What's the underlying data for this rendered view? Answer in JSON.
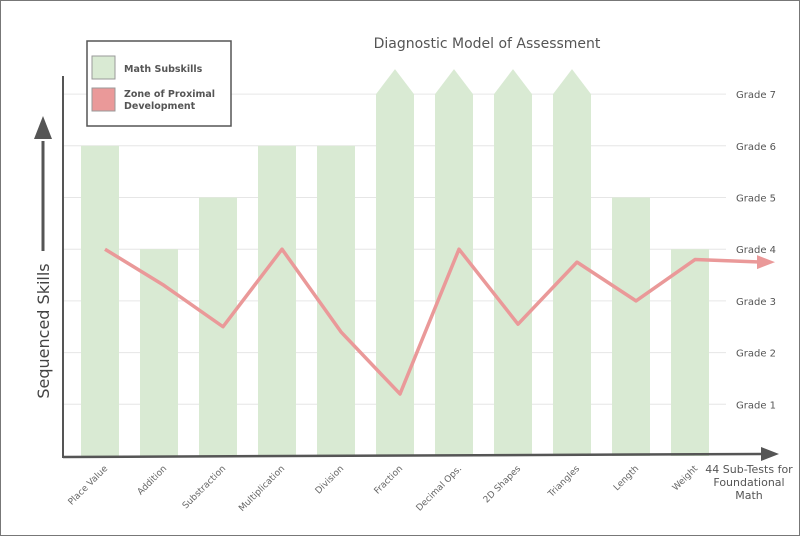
{
  "chart_data": {
    "type": "bar",
    "title": "Diagnostic Model of Assessment",
    "ylabel": "Sequenced Skills",
    "xlabel": "44 Sub-Tests for Foundational Math",
    "xlabel_lines": [
      "44 Sub-Tests for",
      "Foundational",
      "Math"
    ],
    "categories": [
      "Place Value",
      "Addition",
      "Substraction",
      "Multiplication",
      "Division",
      "Fraction",
      "Decimal Ops.",
      "2D Shapes",
      "Triangles",
      "Length",
      "Weight"
    ],
    "y_tick_labels": [
      "Grade 1",
      "Grade 2",
      "Grade 3",
      "Grade 4",
      "Grade 5",
      "Grade 6",
      "Grade 7"
    ],
    "ylim": [
      0,
      7.5
    ],
    "grid": true,
    "legend_placement": "top-left",
    "series": [
      {
        "name": "Math Subskills",
        "kind": "bar",
        "color": "#d9ead3",
        "values": [
          6,
          4,
          5,
          6,
          6,
          7,
          7,
          7,
          7,
          5,
          4
        ],
        "extends_beyond_top": [
          false,
          false,
          false,
          false,
          false,
          true,
          true,
          true,
          true,
          false,
          false
        ]
      },
      {
        "name": "Zone of Proximal Development",
        "legend_lines": [
          "Zone of Proximal",
          "Development"
        ],
        "kind": "line",
        "color": "#ea9999",
        "values": [
          4.0,
          3.3,
          2.5,
          4.0,
          2.4,
          1.2,
          4.0,
          2.55,
          3.75,
          3.0,
          3.8
        ],
        "trailing_arrow_value": 3.75
      }
    ]
  }
}
